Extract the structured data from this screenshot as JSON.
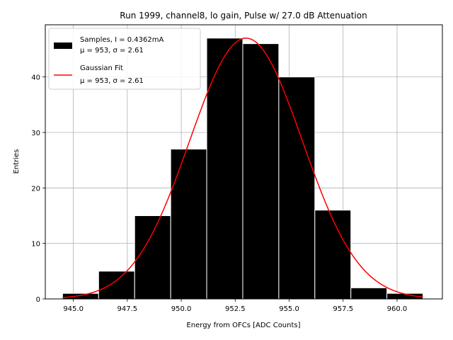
{
  "chart_data": {
    "type": "bar",
    "title": "Run 1999, channel8, lo gain, Pulse w/ 27.0 dB Attenuation",
    "xlabel": "Energy from OFCs [ADC Counts]",
    "ylabel": "Entries",
    "xlim": [
      943.7,
      962.1
    ],
    "ylim": [
      0,
      49.4
    ],
    "grid": true,
    "legend_position": "top-left",
    "xticks": [
      945.0,
      947.5,
      950.0,
      952.5,
      955.0,
      957.5,
      960.0
    ],
    "xtick_labels": [
      "945.0",
      "947.5",
      "950.0",
      "952.5",
      "955.0",
      "957.5",
      "960.0"
    ],
    "yticks": [
      0,
      10,
      20,
      30,
      40
    ],
    "ytick_labels": [
      "0",
      "10",
      "20",
      "30",
      "40"
    ],
    "bins": [
      {
        "x0": 944.5,
        "x1": 946.17,
        "count": 1
      },
      {
        "x0": 946.17,
        "x1": 947.84,
        "count": 5
      },
      {
        "x0": 947.84,
        "x1": 949.51,
        "count": 15
      },
      {
        "x0": 949.51,
        "x1": 951.18,
        "count": 27
      },
      {
        "x0": 951.18,
        "x1": 952.85,
        "count": 47
      },
      {
        "x0": 952.85,
        "x1": 954.52,
        "count": 46
      },
      {
        "x0": 954.52,
        "x1": 956.19,
        "count": 40
      },
      {
        "x0": 956.19,
        "x1": 957.86,
        "count": 16
      },
      {
        "x0": 957.86,
        "x1": 959.53,
        "count": 2
      },
      {
        "x0": 959.53,
        "x1": 961.2,
        "count": 1
      }
    ],
    "series": [
      {
        "name": "Samples, I = 0.4362mA",
        "name_line2": "μ = 953, σ = 2.61",
        "kind": "histogram",
        "color": "#000000",
        "edge_color": "#ffffff"
      },
      {
        "name": "Gaussian Fit",
        "name_line2": "μ = 953, σ = 2.61",
        "kind": "line",
        "color": "#ff0000",
        "amplitude": 47,
        "mu": 953,
        "sigma": 2.61,
        "x_range": [
          944.5,
          961.2
        ]
      }
    ]
  }
}
